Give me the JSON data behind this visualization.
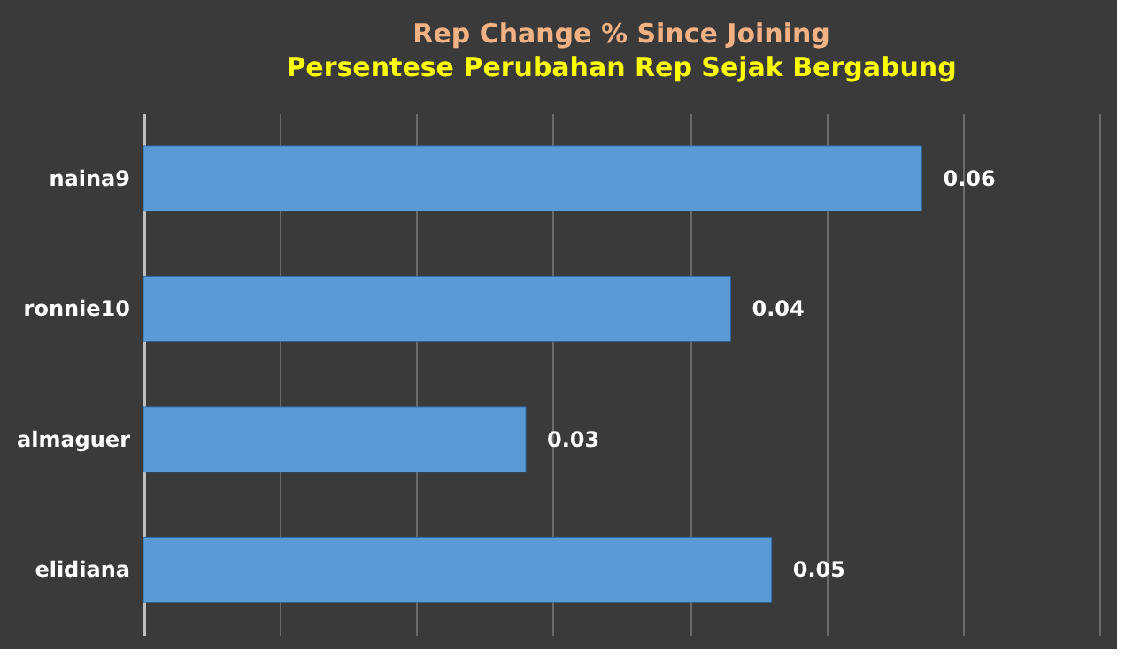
{
  "chart_data": {
    "type": "bar",
    "orientation": "horizontal",
    "title": "Rep Change % Since Joining",
    "subtitle": "Persentese Perubahan Rep Sejak Bergabung",
    "categories": [
      "naina9",
      "ronnie10",
      "almaguer",
      "elidiana"
    ],
    "values": [
      0.057,
      0.043,
      0.028,
      0.046
    ],
    "value_labels": [
      "0.06",
      "0.04",
      "0.03",
      "0.05"
    ],
    "color": "#5b9bd5",
    "xlim": [
      0,
      0.07
    ],
    "xticks": [
      {
        "value": 0,
        "label": null
      },
      {
        "value": 0.01,
        "label": null
      },
      {
        "value": 0.02,
        "label": null
      },
      {
        "value": 0.03,
        "label": null
      },
      {
        "value": 0.04,
        "label": null
      },
      {
        "value": 0.05,
        "label": null
      },
      {
        "value": 0.06,
        "label": null
      },
      {
        "value": 0.07,
        "label": null
      }
    ],
    "tick_labels": "y",
    "grid": "x"
  }
}
